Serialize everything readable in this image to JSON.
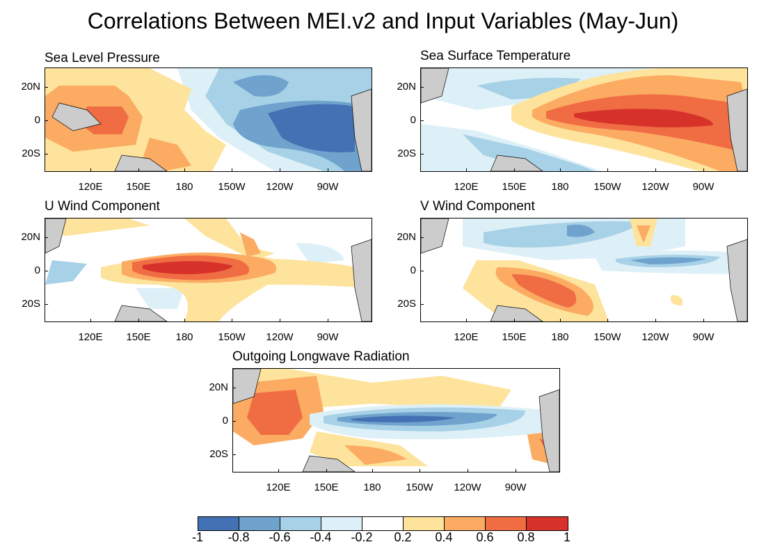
{
  "title": "Correlations Between MEI.v2 and Input Variables (May-Jun)",
  "panels": [
    {
      "name": "Sea Level Pressure"
    },
    {
      "name": "Sea Surface Temperature"
    },
    {
      "name": "U Wind Component"
    },
    {
      "name": "V Wind Component"
    },
    {
      "name": "Outgoing Longwave Radiation"
    }
  ],
  "axes": {
    "lat_labels": [
      "20N",
      "0",
      "20S"
    ],
    "lon_labels": [
      "120E",
      "150E",
      "180",
      "150W",
      "120W",
      "90W"
    ]
  },
  "colorbar": {
    "labels": [
      "-1",
      "-0.8",
      "-0.6",
      "-0.4",
      "-0.2",
      "0.2",
      "0.4",
      "0.6",
      "0.8",
      "1"
    ],
    "colors": [
      "#4271b4",
      "#6fa3cd",
      "#a6d1e6",
      "#def0f7",
      "#ffffff",
      "#fde39c",
      "#fbab62",
      "#f06d44",
      "#d6322a"
    ]
  },
  "land_color": "#cccccc"
}
